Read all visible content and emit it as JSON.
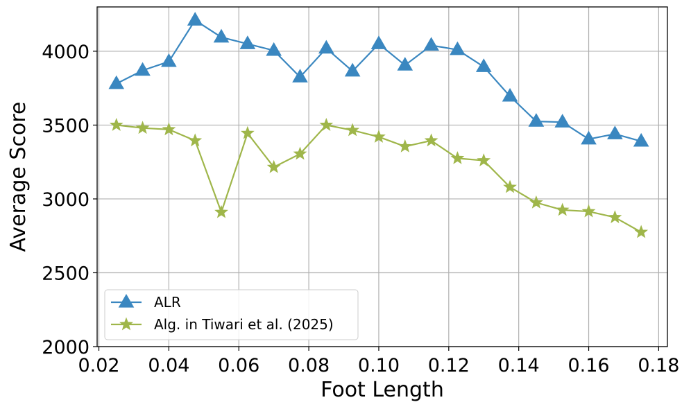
{
  "chart_data": {
    "type": "line",
    "xlabel": "Foot Length",
    "ylabel": "Average Score",
    "xlim": [
      0.0195,
      0.1825
    ],
    "ylim": [
      2000,
      4300
    ],
    "xticks": [
      0.02,
      0.04,
      0.06,
      0.08,
      0.1,
      0.12,
      0.14,
      0.16,
      0.18
    ],
    "xtick_labels": [
      "0.02",
      "0.04",
      "0.06",
      "0.08",
      "0.10",
      "0.12",
      "0.14",
      "0.16",
      "0.18"
    ],
    "yticks": [
      2000,
      2500,
      3000,
      3500,
      4000
    ],
    "ytick_labels": [
      "2000",
      "2500",
      "3000",
      "3500",
      "4000"
    ],
    "grid": true,
    "legend_position": "lower-left",
    "x": [
      0.025,
      0.0325,
      0.04,
      0.0475,
      0.055,
      0.0625,
      0.07,
      0.0775,
      0.085,
      0.0925,
      0.1,
      0.1075,
      0.115,
      0.1225,
      0.13,
      0.1375,
      0.145,
      0.1525,
      0.16,
      0.1675,
      0.175
    ],
    "series": [
      {
        "name": "ALR",
        "marker": "triangle",
        "color": "#3a87c0",
        "values": [
          3780,
          3870,
          3930,
          4210,
          4095,
          4050,
          4005,
          3825,
          4020,
          3865,
          4050,
          3905,
          4040,
          4010,
          3895,
          3695,
          3525,
          3520,
          3405,
          3440,
          3390
        ]
      },
      {
        "name": "Alg. in Tiwari et al. (2025)",
        "marker": "star",
        "color": "#9fb64a",
        "values": [
          3500,
          3480,
          3470,
          3395,
          2910,
          3445,
          3215,
          3305,
          3500,
          3465,
          3420,
          3355,
          3395,
          3275,
          3260,
          3080,
          2975,
          2925,
          2915,
          2875,
          2775
        ]
      }
    ]
  }
}
